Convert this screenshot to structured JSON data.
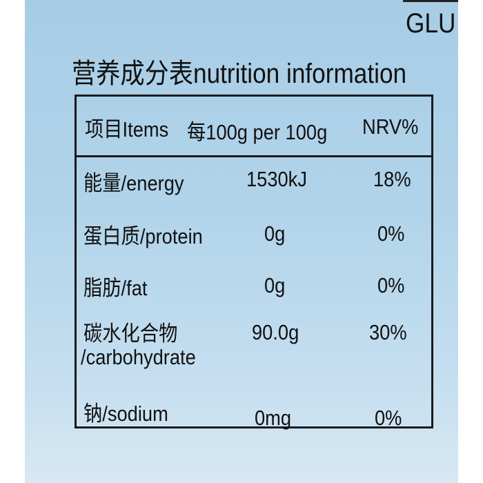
{
  "brand_fragment": "GLU",
  "title": "营养成分表nutrition information",
  "table": {
    "headers": [
      "项目Items",
      "每100g per 100g",
      "NRV%"
    ],
    "rows": [
      {
        "item": "能量/energy",
        "item2": "",
        "per100g": "1530kJ",
        "nrv": "18%"
      },
      {
        "item": "蛋白质/protein",
        "item2": "",
        "per100g": "0g",
        "nrv": "0%"
      },
      {
        "item": "脂肪/fat",
        "item2": "",
        "per100g": "0g",
        "nrv": "0%"
      },
      {
        "item": "碳水化合物",
        "item2": "/carbohydrate",
        "per100g": "90.0g",
        "nrv": "30%"
      },
      {
        "item": "钠/sodium",
        "item2": "",
        "per100g": "0mg",
        "nrv": "0%"
      }
    ]
  }
}
